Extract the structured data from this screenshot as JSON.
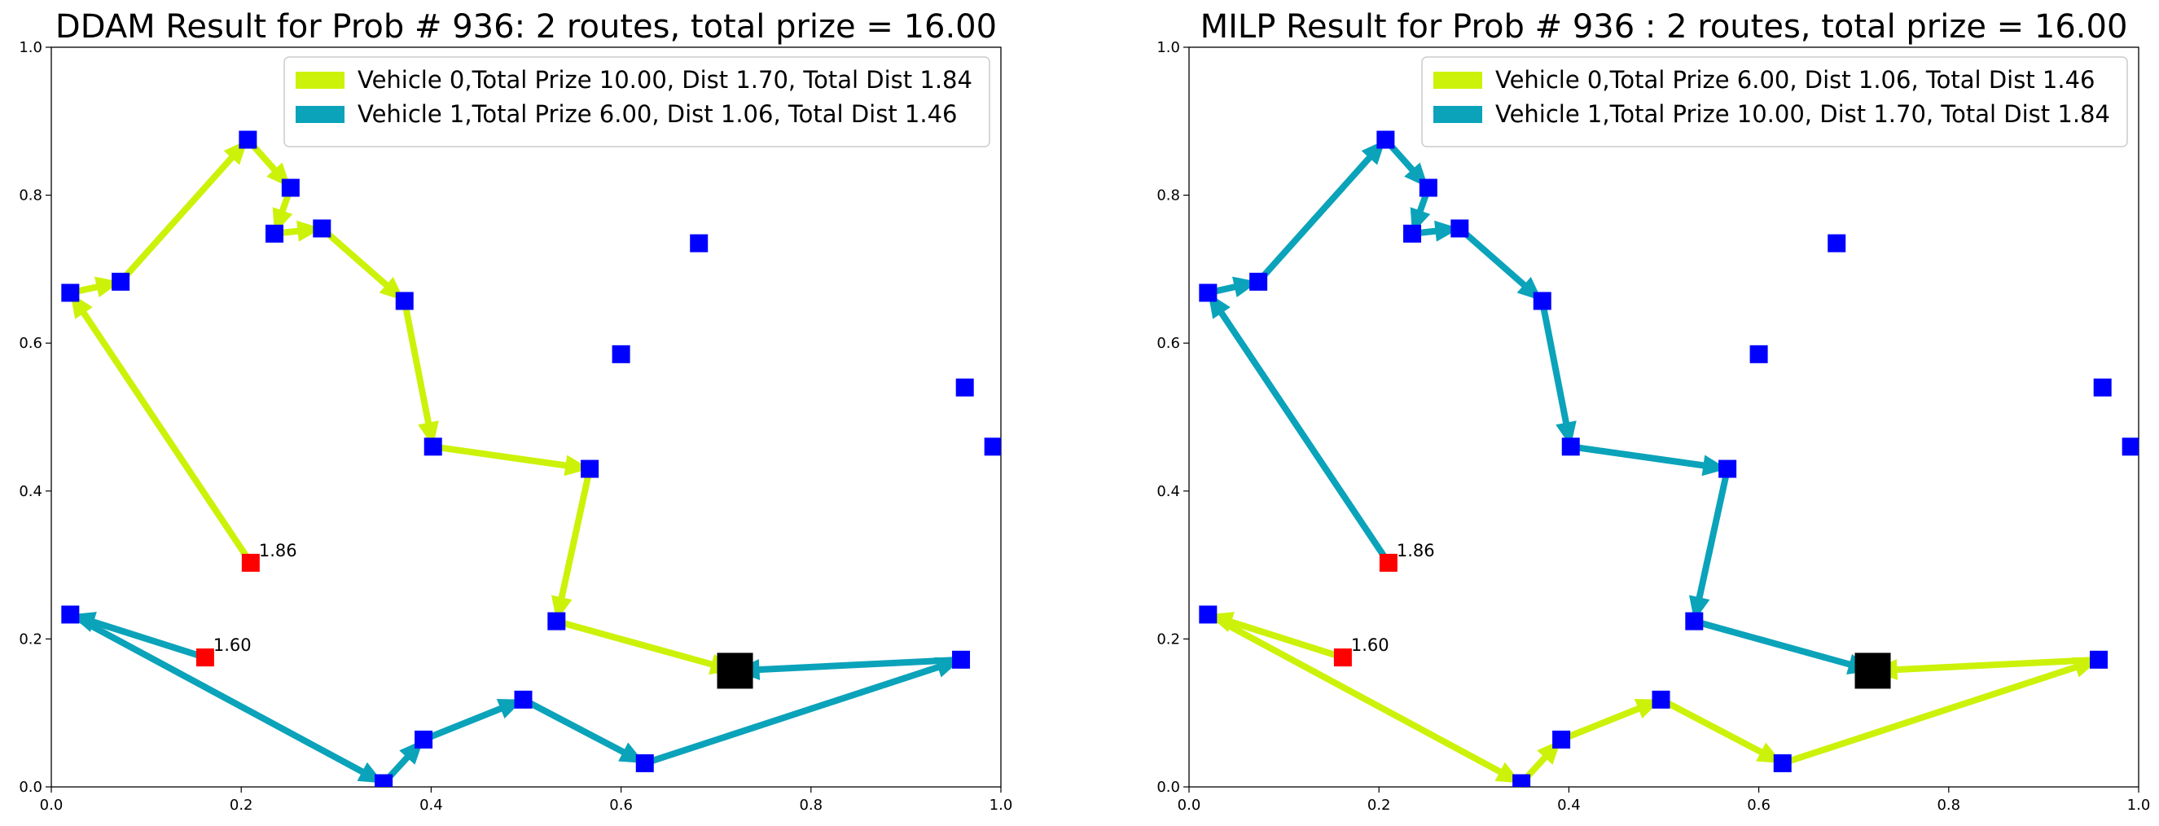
{
  "chart_data": [
    {
      "type": "scatter",
      "title": "DDAM Result for Prob # 936: 2 routes, total prize = 16.00",
      "xlim": [
        0,
        1
      ],
      "ylim": [
        0,
        1
      ],
      "x_ticks": [
        "0.0",
        "0.2",
        "0.4",
        "0.6",
        "0.8",
        "1.0"
      ],
      "y_ticks": [
        "0.0",
        "0.2",
        "0.4",
        "0.6",
        "0.8",
        "1.0"
      ],
      "grid": false,
      "legend_position": "upper-right",
      "depot": [
        0.72,
        0.157
      ],
      "nodes": [
        [
          0.207,
          0.875
        ],
        [
          0.252,
          0.81
        ],
        [
          0.235,
          0.748
        ],
        [
          0.285,
          0.755
        ],
        [
          0.372,
          0.657
        ],
        [
          0.402,
          0.46
        ],
        [
          0.567,
          0.43
        ],
        [
          0.532,
          0.224
        ],
        [
          0.02,
          0.668
        ],
        [
          0.073,
          0.683
        ],
        [
          0.02,
          0.233
        ],
        [
          0.35,
          0.005
        ],
        [
          0.392,
          0.064
        ],
        [
          0.497,
          0.118
        ],
        [
          0.625,
          0.032
        ],
        [
          0.958,
          0.172
        ],
        [
          0.682,
          0.735
        ],
        [
          0.6,
          0.585
        ],
        [
          0.962,
          0.54
        ],
        [
          0.992,
          0.46
        ]
      ],
      "red_nodes": [
        {
          "x": 0.21,
          "y": 0.303,
          "label": "1.86"
        },
        {
          "x": 0.162,
          "y": 0.175,
          "label": "1.60"
        }
      ],
      "series": [
        {
          "name": "Vehicle 0,Total Prize 10.00, Dist 1.70, Total Dist 1.84",
          "color": "#ccf20a",
          "path": [
            [
              0.21,
              0.303
            ],
            [
              0.02,
              0.668
            ],
            [
              0.073,
              0.683
            ],
            [
              0.207,
              0.875
            ],
            [
              0.252,
              0.81
            ],
            [
              0.235,
              0.748
            ],
            [
              0.285,
              0.755
            ],
            [
              0.372,
              0.657
            ],
            [
              0.402,
              0.46
            ],
            [
              0.567,
              0.43
            ],
            [
              0.532,
              0.224
            ],
            [
              0.72,
              0.157
            ]
          ]
        },
        {
          "name": "Vehicle 1,Total Prize 6.00, Dist 1.06, Total Dist 1.46",
          "color": "#0aa3ba",
          "path": [
            [
              0.162,
              0.175
            ],
            [
              0.02,
              0.233
            ],
            [
              0.35,
              0.005
            ],
            [
              0.392,
              0.064
            ],
            [
              0.497,
              0.118
            ],
            [
              0.625,
              0.032
            ],
            [
              0.958,
              0.172
            ],
            [
              0.72,
              0.157
            ]
          ]
        }
      ],
      "colors": {
        "node": "#0000ff",
        "red_node": "#ff0000",
        "depot": "#000000"
      }
    },
    {
      "type": "scatter",
      "title": "MILP Result for Prob # 936 : 2 routes, total prize = 16.00",
      "xlim": [
        0,
        1
      ],
      "ylim": [
        0,
        1
      ],
      "x_ticks": [
        "0.0",
        "0.2",
        "0.4",
        "0.6",
        "0.8",
        "1.0"
      ],
      "y_ticks": [
        "0.0",
        "0.2",
        "0.4",
        "0.6",
        "0.8",
        "1.0"
      ],
      "grid": false,
      "legend_position": "upper-right",
      "depot": [
        0.72,
        0.157
      ],
      "nodes": [
        [
          0.207,
          0.875
        ],
        [
          0.252,
          0.81
        ],
        [
          0.235,
          0.748
        ],
        [
          0.285,
          0.755
        ],
        [
          0.372,
          0.657
        ],
        [
          0.402,
          0.46
        ],
        [
          0.567,
          0.43
        ],
        [
          0.532,
          0.224
        ],
        [
          0.02,
          0.668
        ],
        [
          0.073,
          0.683
        ],
        [
          0.02,
          0.233
        ],
        [
          0.35,
          0.005
        ],
        [
          0.392,
          0.064
        ],
        [
          0.497,
          0.118
        ],
        [
          0.625,
          0.032
        ],
        [
          0.958,
          0.172
        ],
        [
          0.682,
          0.735
        ],
        [
          0.6,
          0.585
        ],
        [
          0.962,
          0.54
        ],
        [
          0.992,
          0.46
        ]
      ],
      "red_nodes": [
        {
          "x": 0.21,
          "y": 0.303,
          "label": "1.86"
        },
        {
          "x": 0.162,
          "y": 0.175,
          "label": "1.60"
        }
      ],
      "series": [
        {
          "name": "Vehicle 0,Total Prize 6.00, Dist 1.06, Total Dist 1.46",
          "color": "#ccf20a",
          "path": [
            [
              0.162,
              0.175
            ],
            [
              0.02,
              0.233
            ],
            [
              0.35,
              0.005
            ],
            [
              0.392,
              0.064
            ],
            [
              0.497,
              0.118
            ],
            [
              0.625,
              0.032
            ],
            [
              0.958,
              0.172
            ],
            [
              0.72,
              0.157
            ]
          ]
        },
        {
          "name": "Vehicle 1,Total Prize 10.00, Dist 1.70, Total Dist 1.84",
          "color": "#0aa3ba",
          "path": [
            [
              0.21,
              0.303
            ],
            [
              0.02,
              0.668
            ],
            [
              0.073,
              0.683
            ],
            [
              0.207,
              0.875
            ],
            [
              0.252,
              0.81
            ],
            [
              0.235,
              0.748
            ],
            [
              0.285,
              0.755
            ],
            [
              0.372,
              0.657
            ],
            [
              0.402,
              0.46
            ],
            [
              0.567,
              0.43
            ],
            [
              0.532,
              0.224
            ],
            [
              0.72,
              0.157
            ]
          ]
        }
      ],
      "colors": {
        "node": "#0000ff",
        "red_node": "#ff0000",
        "depot": "#000000"
      }
    }
  ]
}
